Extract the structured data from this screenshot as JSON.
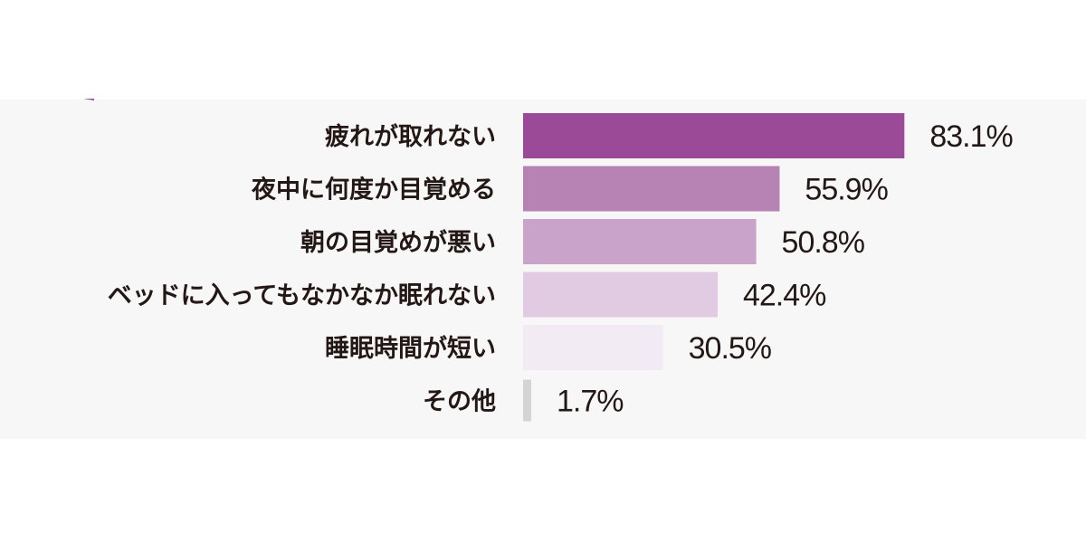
{
  "chart_data": {
    "type": "bar",
    "orientation": "horizontal",
    "categories": [
      "疲れが取れない",
      "夜中に何度か目覚める",
      "朝の目覚めが悪い",
      "ベッドに入ってもなかなか眠れない",
      "睡眠時間が短い",
      "その他"
    ],
    "values": [
      83.1,
      55.9,
      50.8,
      42.4,
      30.5,
      1.7
    ],
    "value_labels": [
      "83.1%",
      "55.9%",
      "50.8%",
      "42.4%",
      "30.5%",
      "1.7%"
    ],
    "unit": "%",
    "xlim": [
      0,
      100
    ],
    "grid": false,
    "legend": "none",
    "colors": [
      "#9b4a97",
      "#b782b4",
      "#caa3cb",
      "#e0cbe2",
      "#f2ebf3",
      "#d4d4d4"
    ],
    "background_band_color": "#f7f7f7"
  }
}
